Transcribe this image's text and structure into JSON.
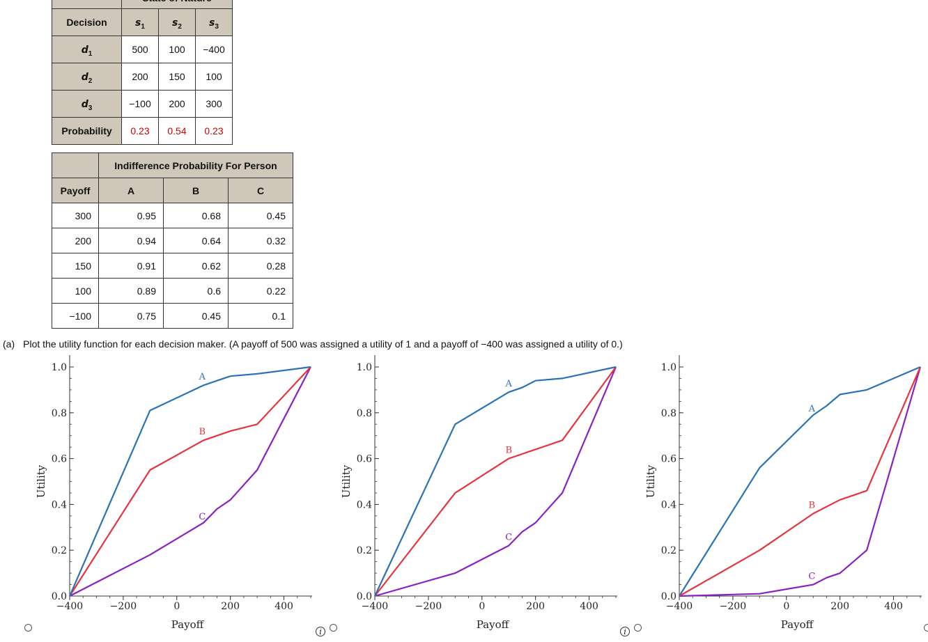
{
  "decision_table": {
    "top_header": "State of Nature",
    "decision_header": "Decision",
    "states": [
      "s1",
      "s2",
      "s3"
    ],
    "rows": [
      {
        "label": "d1",
        "values": [
          "500",
          "100",
          "−400"
        ]
      },
      {
        "label": "d2",
        "values": [
          "200",
          "150",
          "100"
        ]
      },
      {
        "label": "d3",
        "values": [
          "−100",
          "200",
          "300"
        ]
      }
    ],
    "probability_label": "Probability",
    "probabilities": [
      "0.23",
      "0.54",
      "0.23"
    ]
  },
  "indifference_table": {
    "title": "Indifference Probability For Person",
    "payoff_header": "Payoff",
    "persons": [
      "A",
      "B",
      "C"
    ],
    "rows": [
      {
        "payoff": "300",
        "values": [
          "0.95",
          "0.68",
          "0.45"
        ]
      },
      {
        "payoff": "200",
        "values": [
          "0.94",
          "0.64",
          "0.32"
        ]
      },
      {
        "payoff": "150",
        "values": [
          "0.91",
          "0.62",
          "0.28"
        ]
      },
      {
        "payoff": "100",
        "values": [
          "0.89",
          "0.6",
          "0.22"
        ]
      },
      {
        "payoff": "−100",
        "values": [
          "0.75",
          "0.45",
          "0.1"
        ]
      }
    ]
  },
  "question": {
    "label": "(a)",
    "text": "Plot the utility function for each decision maker. (A payoff of 500 was assigned a utility of 1 and a payoff of −400 was assigned a utility of 0.)"
  },
  "colors": {
    "A": "#2a72b8",
    "B": "#e8333c",
    "C": "#8a1fc4",
    "header_bg": "#cfc7b9",
    "prob_red": "#cc0000"
  },
  "chart_data": [
    {
      "type": "line",
      "xlabel": "Payoff",
      "ylabel": "Utility",
      "xlim": [
        -400,
        500
      ],
      "ylim": [
        0,
        1
      ],
      "xticks": [
        -400,
        -200,
        0,
        200,
        400
      ],
      "yticks": [
        0.0,
        0.2,
        0.4,
        0.6,
        0.8,
        1.0
      ],
      "xtick_labels": [
        "−400",
        "−200",
        "0",
        "200",
        "400"
      ],
      "ytick_labels": [
        "0.0",
        "0.2",
        "0.4",
        "0.6",
        "0.8",
        "1.0"
      ],
      "x": [
        -400,
        -100,
        100,
        150,
        200,
        300,
        500
      ],
      "series": [
        {
          "name": "A",
          "values": [
            0,
            0.81,
            0.92,
            0.94,
            0.96,
            0.97,
            1
          ]
        },
        {
          "name": "B",
          "values": [
            0,
            0.55,
            0.68,
            0.7,
            0.72,
            0.75,
            1
          ]
        },
        {
          "name": "C",
          "values": [
            0,
            0.18,
            0.32,
            0.38,
            0.42,
            0.55,
            1
          ]
        }
      ],
      "label_x": {
        "A": 95,
        "B": 95,
        "C": 95
      },
      "label_y": {
        "A": 0.96,
        "B": 0.72,
        "C": 0.35
      }
    },
    {
      "type": "line",
      "xlabel": "Payoff",
      "ylabel": "Utility",
      "xlim": [
        -400,
        500
      ],
      "ylim": [
        0,
        1
      ],
      "xticks": [
        -400,
        -200,
        0,
        200,
        400
      ],
      "yticks": [
        0.0,
        0.2,
        0.4,
        0.6,
        0.8,
        1.0
      ],
      "xtick_labels": [
        "−400",
        "−200",
        "0",
        "200",
        "400"
      ],
      "ytick_labels": [
        "0.0",
        "0.2",
        "0.4",
        "0.6",
        "0.8",
        "1.0"
      ],
      "x": [
        -400,
        -100,
        100,
        150,
        200,
        300,
        500
      ],
      "series": [
        {
          "name": "A",
          "values": [
            0,
            0.75,
            0.89,
            0.91,
            0.94,
            0.95,
            1
          ]
        },
        {
          "name": "B",
          "values": [
            0,
            0.45,
            0.6,
            0.62,
            0.64,
            0.68,
            1
          ]
        },
        {
          "name": "C",
          "values": [
            0,
            0.1,
            0.22,
            0.28,
            0.32,
            0.45,
            1
          ]
        }
      ],
      "label_x": {
        "A": 100,
        "B": 100,
        "C": 100
      },
      "label_y": {
        "A": 0.93,
        "B": 0.64,
        "C": 0.26
      }
    },
    {
      "type": "line",
      "xlabel": "Payoff",
      "ylabel": "Utility",
      "xlim": [
        -400,
        500
      ],
      "ylim": [
        0,
        1
      ],
      "xticks": [
        -400,
        -200,
        0,
        200,
        400
      ],
      "yticks": [
        0.0,
        0.2,
        0.4,
        0.6,
        0.8,
        1.0
      ],
      "xtick_labels": [
        "−400",
        "−200",
        "0",
        "200",
        "400"
      ],
      "ytick_labels": [
        "0.0",
        "0.2",
        "0.4",
        "0.6",
        "0.8",
        "1.0"
      ],
      "x": [
        -400,
        -100,
        100,
        150,
        200,
        300,
        500
      ],
      "series": [
        {
          "name": "A",
          "values": [
            0,
            0.56,
            0.79,
            0.83,
            0.88,
            0.9,
            1
          ]
        },
        {
          "name": "B",
          "values": [
            0,
            0.2,
            0.36,
            0.39,
            0.42,
            0.46,
            1
          ]
        },
        {
          "name": "C",
          "values": [
            0,
            0.01,
            0.05,
            0.08,
            0.1,
            0.2,
            1
          ]
        }
      ],
      "label_x": {
        "A": 95,
        "B": 95,
        "C": 95
      },
      "label_y": {
        "A": 0.82,
        "B": 0.4,
        "C": 0.09
      }
    }
  ]
}
